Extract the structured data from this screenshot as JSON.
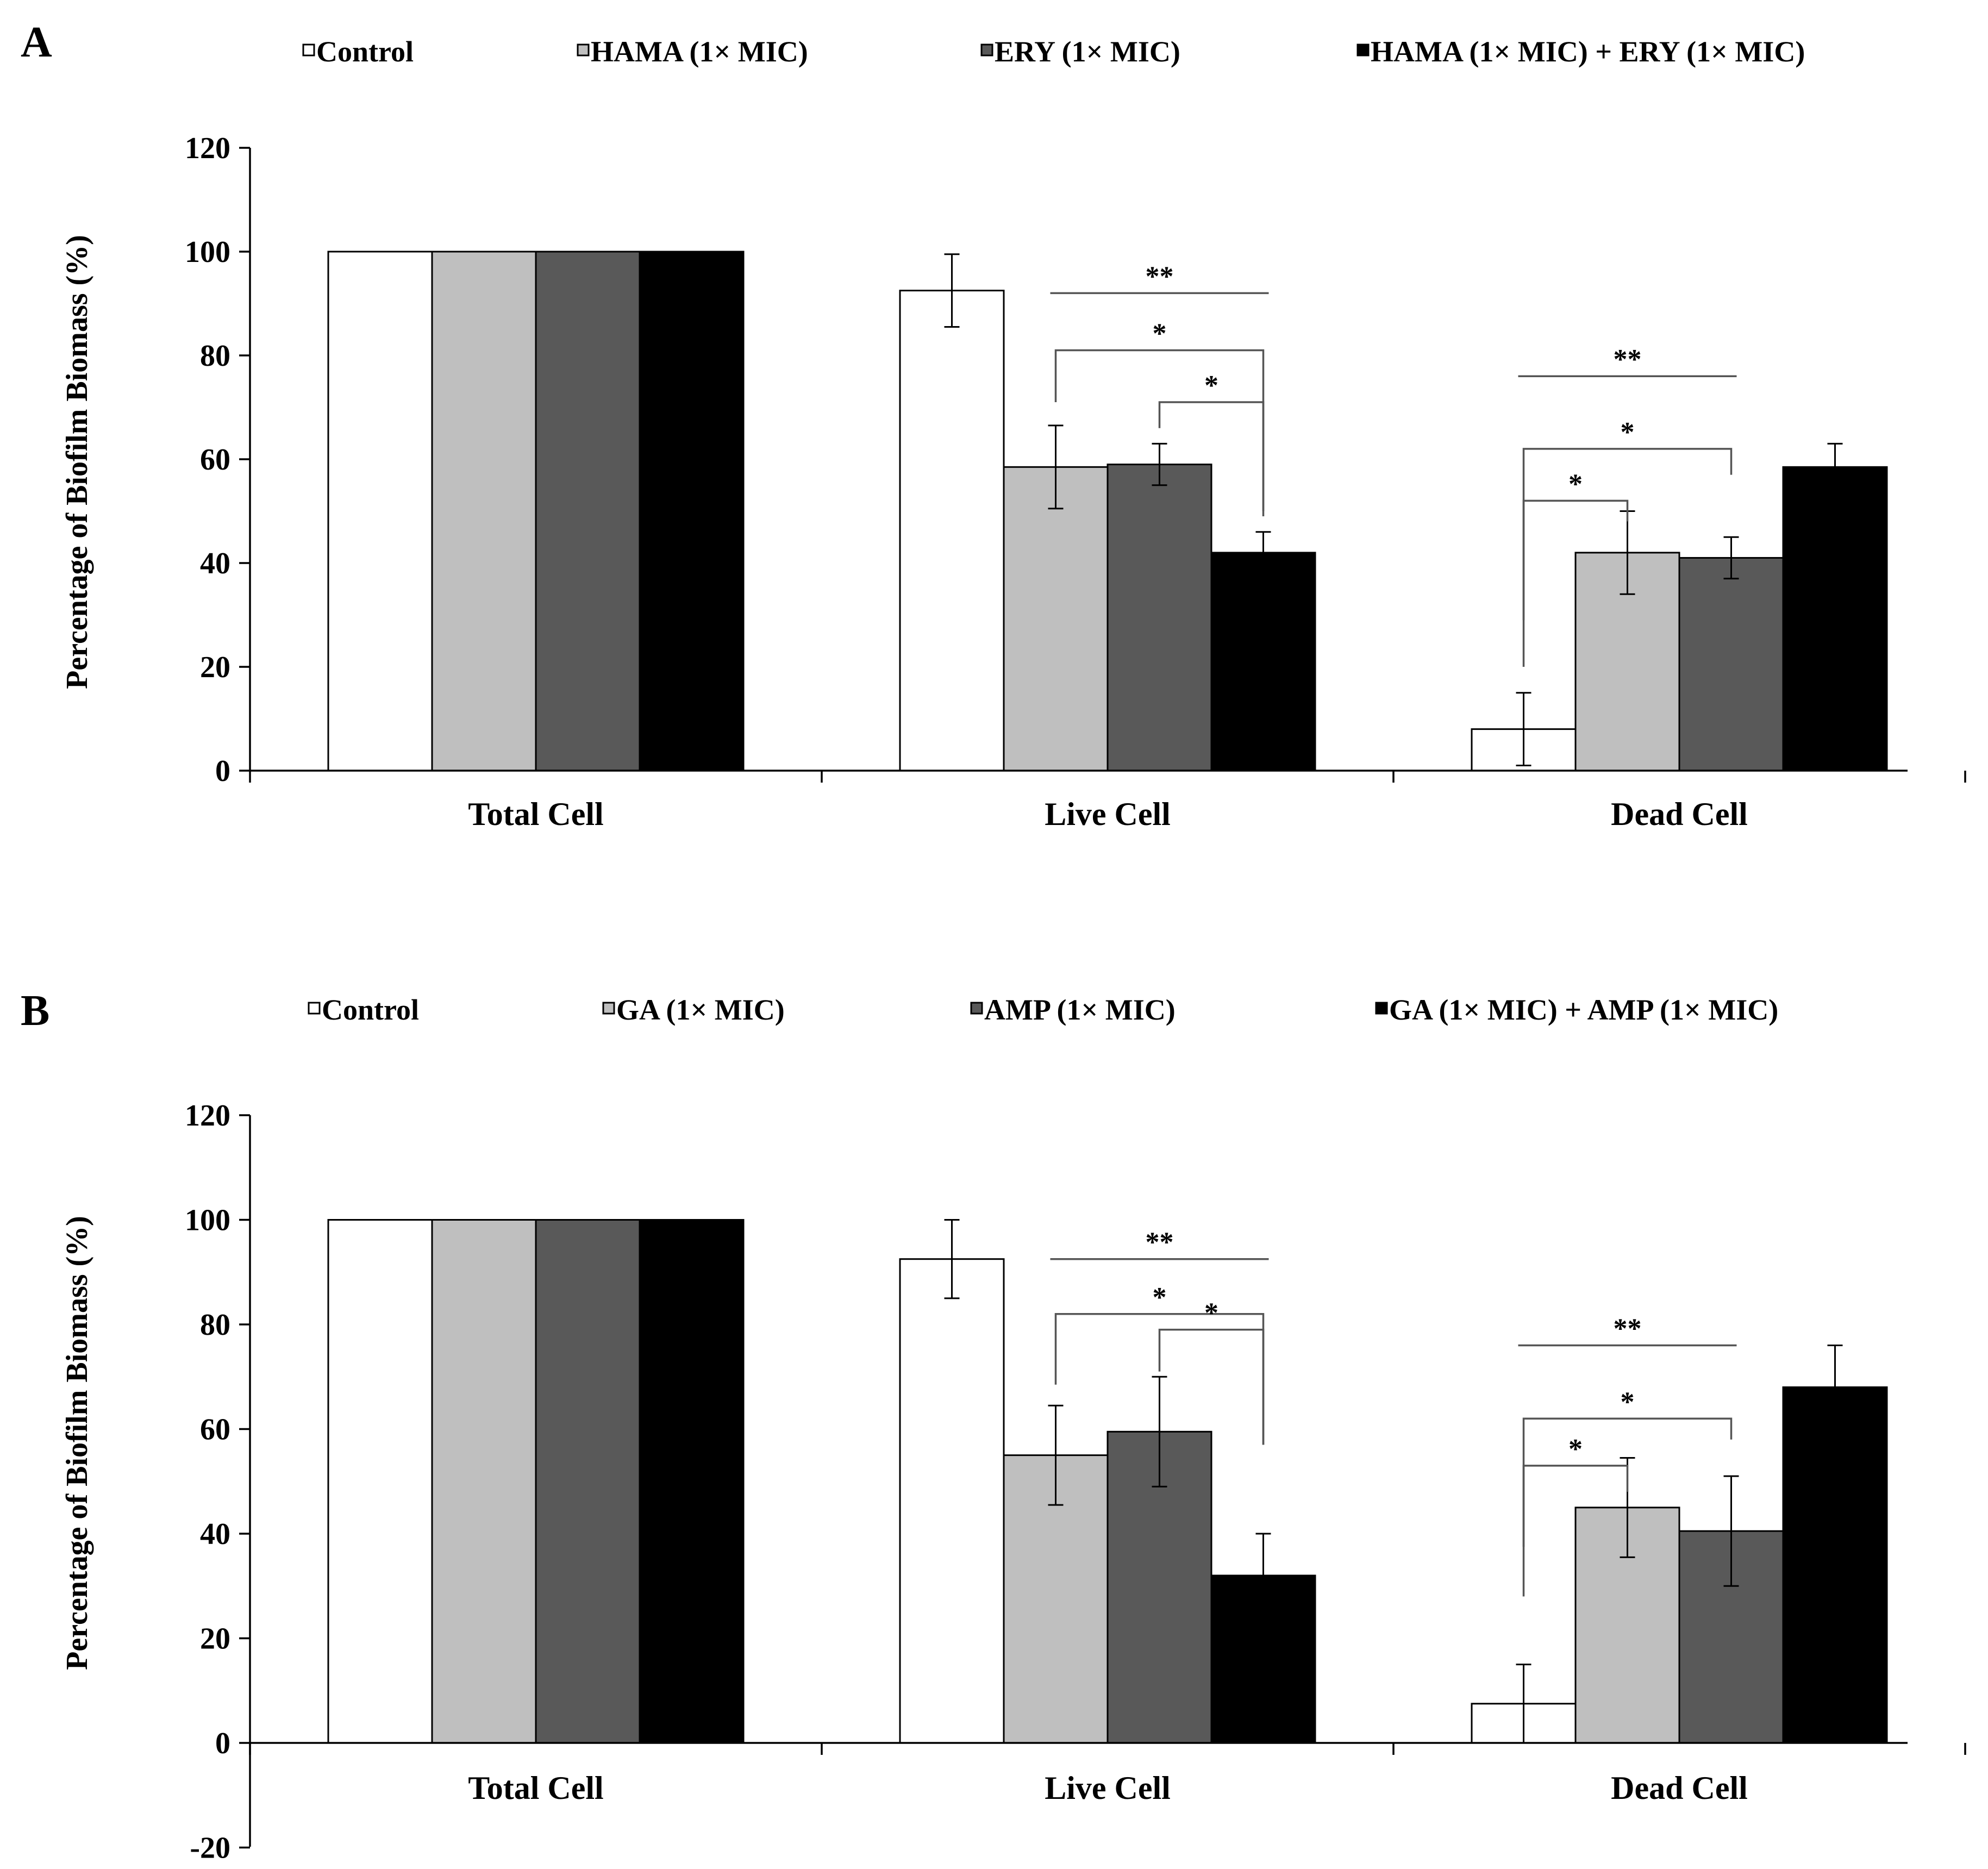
{
  "figure": {
    "type": "grouped bar chart with error bars",
    "panels": 2
  },
  "chart_data": [
    {
      "panel_label": "A",
      "type": "bar",
      "title": "",
      "xlabel": "",
      "ylabel": "Percentage of Biofilm Biomass (%)",
      "ylim": [
        0,
        120
      ],
      "yticks": [
        "0",
        "20",
        "40",
        "60",
        "80",
        "100",
        "120"
      ],
      "categories": [
        "Total Cell",
        "Live Cell",
        "Dead Cell"
      ],
      "legend_position": "top",
      "series": [
        {
          "name": "Control",
          "color": "#ffffff",
          "values": [
            100,
            92.5,
            8
          ],
          "errors": [
            0,
            7,
            7
          ]
        },
        {
          "name": "HAMA (1× MIC)",
          "color": "#bfbfbf",
          "values": [
            100,
            58.5,
            42
          ],
          "errors": [
            0,
            8,
            8
          ]
        },
        {
          "name": "ERY (1× MIC)",
          "color": "#595959",
          "values": [
            100,
            59,
            41
          ],
          "errors": [
            0,
            4,
            4
          ]
        },
        {
          "name": "HAMA (1× MIC) + ERY (1× MIC)",
          "color": "#000000",
          "values": [
            100,
            42,
            58.5
          ],
          "errors": [
            0,
            4,
            4.5
          ]
        }
      ],
      "significance": [
        {
          "category": "Live Cell",
          "type": "line",
          "from_series": 1,
          "to_series": 3,
          "y": 92,
          "label": "**"
        },
        {
          "category": "Live Cell",
          "type": "bracket",
          "from_series": 1,
          "to_series": 3,
          "y": 81,
          "left_end": 71,
          "right_end": 49,
          "label": "*"
        },
        {
          "category": "Live Cell",
          "type": "bracket",
          "from_series": 2,
          "to_series": 3,
          "y": 71,
          "left_end": 66,
          "right_end": 50,
          "label": "*"
        },
        {
          "category": "Dead Cell",
          "type": "line",
          "from_series": 0,
          "to_series": 2,
          "y": 76,
          "label": "**"
        },
        {
          "category": "Dead Cell",
          "type": "bracket",
          "from_series": 0,
          "to_series": 2,
          "y": 62,
          "left_end": 29,
          "right_end": 57,
          "label": "*"
        },
        {
          "category": "Dead Cell",
          "type": "bracket",
          "from_series": 1,
          "to_series": 0,
          "y": 52,
          "left_end": 20,
          "right_end": 48,
          "label": "*"
        }
      ]
    },
    {
      "panel_label": "B",
      "type": "bar",
      "title": "",
      "xlabel": "",
      "ylabel": "Percentage of Biofilm Biomass (%)",
      "ylim": [
        -20,
        120
      ],
      "yticks": [
        "-20",
        "0",
        "20",
        "40",
        "60",
        "80",
        "100",
        "120"
      ],
      "categories": [
        "Total Cell",
        "Live Cell",
        "Dead Cell"
      ],
      "legend_position": "top",
      "series": [
        {
          "name": "Control",
          "color": "#ffffff",
          "values": [
            100,
            92.5,
            7.5
          ],
          "errors": [
            0,
            7.5,
            7.5
          ]
        },
        {
          "name": "GA (1× MIC)",
          "color": "#bfbfbf",
          "values": [
            100,
            55,
            45
          ],
          "errors": [
            0,
            9.5,
            9.5
          ]
        },
        {
          "name": "AMP (1× MIC)",
          "color": "#595959",
          "values": [
            100,
            59.5,
            40.5
          ],
          "errors": [
            0,
            10.5,
            10.5
          ]
        },
        {
          "name": "GA (1× MIC) + AMP (1× MIC)",
          "color": "#000000",
          "values": [
            100,
            32,
            68
          ],
          "errors": [
            0,
            8,
            8
          ]
        }
      ],
      "significance": [
        {
          "category": "Live Cell",
          "type": "line",
          "from_series": 1,
          "to_series": 3,
          "y": 92.5,
          "label": "**"
        },
        {
          "category": "Live Cell",
          "type": "bracket",
          "from_series": 1,
          "to_series": 3,
          "y": 82,
          "left_end": 68.5,
          "right_end": 57,
          "label": "*"
        },
        {
          "category": "Live Cell",
          "type": "bracket",
          "from_series": 2,
          "to_series": 3,
          "y": 79,
          "left_end": 71,
          "right_end": 57,
          "label": "*"
        },
        {
          "category": "Dead Cell",
          "type": "line",
          "from_series": 0,
          "to_series": 2,
          "y": 76,
          "label": "**"
        },
        {
          "category": "Dead Cell",
          "type": "bracket",
          "from_series": 0,
          "to_series": 2,
          "y": 62,
          "left_end": 37.5,
          "right_end": 58,
          "label": "*"
        },
        {
          "category": "Dead Cell",
          "type": "bracket",
          "from_series": 1,
          "to_series": 0,
          "y": 53,
          "left_end": 28,
          "right_end": 48,
          "label": "*"
        }
      ]
    }
  ]
}
